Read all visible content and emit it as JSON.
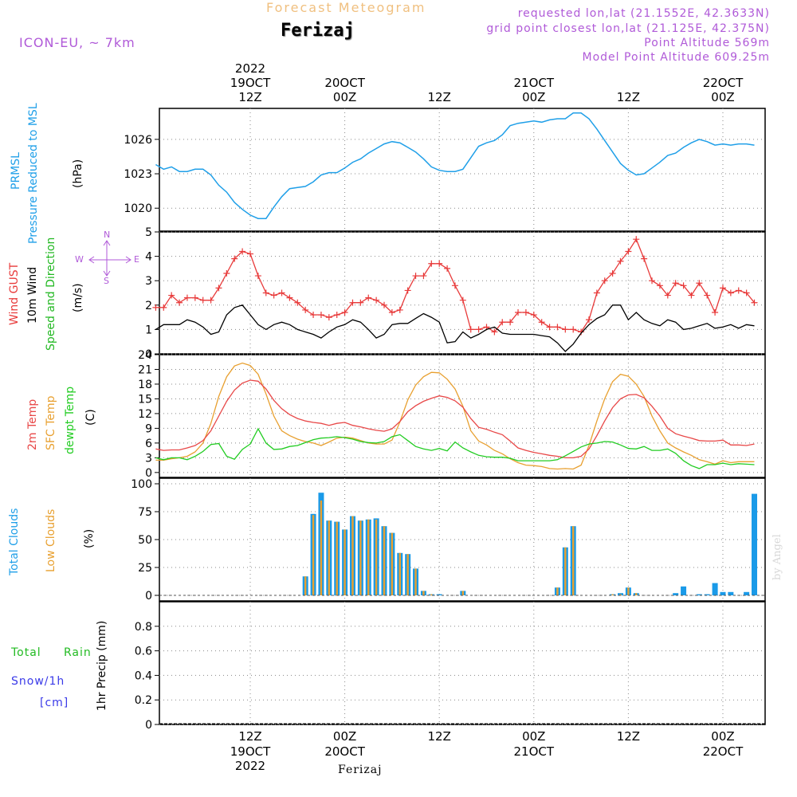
{
  "header": {
    "forecast_title": "Forecast Meteogram",
    "location": "Ferizaj",
    "model": "ICON-EU, ~ 7km",
    "requested": "requested lon,lat (21.1552E, 42.3633N)",
    "grid_point": "grid point closest lon,lat (21.125E, 42.375N)",
    "point_altitude": "Point Altitude 569m",
    "model_altitude": "Model Point Altitude 609.25m",
    "watermark": "by Angel",
    "footer_location": "Ferizaj"
  },
  "time_axis": {
    "top_labels": [
      {
        "l1": "2022",
        "l2": "19OCT",
        "l3": "12Z",
        "hour": 12
      },
      {
        "l1": "",
        "l2": "20OCT",
        "l3": "00Z",
        "hour": 24
      },
      {
        "l1": "",
        "l2": "",
        "l3": "12Z",
        "hour": 36
      },
      {
        "l1": "",
        "l2": "21OCT",
        "l3": "00Z",
        "hour": 48
      },
      {
        "l1": "",
        "l2": "",
        "l3": "12Z",
        "hour": 60
      },
      {
        "l1": "",
        "l2": "22OCT",
        "l3": "00Z",
        "hour": 72
      }
    ],
    "bottom_labels": [
      {
        "l1": "12Z",
        "l2": "19OCT",
        "l3": "2022",
        "hour": 12
      },
      {
        "l1": "00Z",
        "l2": "20OCT",
        "l3": "",
        "hour": 24
      },
      {
        "l1": "12Z",
        "l2": "",
        "l3": "",
        "hour": 36
      },
      {
        "l1": "00Z",
        "l2": "21OCT",
        "l3": "",
        "hour": 48
      },
      {
        "l1": "12Z",
        "l2": "",
        "l3": "",
        "hour": 60
      },
      {
        "l1": "00Z",
        "l2": "22OCT",
        "l3": "",
        "hour": 72
      }
    ]
  },
  "colors": {
    "pressure": "#1f9fe8",
    "gust": "#e83a3a",
    "wind": "#000000",
    "direction": "#22b822",
    "temp2m": "#e84848",
    "sfc": "#e8a030",
    "dewpt": "#22cc22",
    "total_clouds": "#1a9ae8",
    "low_clouds": "#e8a030",
    "rain": "#22bb22",
    "snow": "#3a3ae8",
    "header_purple": "#b05ad8",
    "header_orange": "#f0c080"
  },
  "labels": {
    "pressure_1": "PRMSL",
    "pressure_2": "Pressure Reduced to MSL",
    "pressure_unit": "(hPa)",
    "wind_gust": "Wind GUST",
    "wind_10m": "10m Wind",
    "wind_dir": "Speed and Direction",
    "wind_unit": "(m/s)",
    "compass_n": "N",
    "compass_s": "S",
    "compass_w": "W",
    "compass_e": "E",
    "temp_2m": "2m Temp",
    "temp_sfc": "SFC Temp",
    "temp_dew": "dewpt Temp",
    "temp_unit": "(C)",
    "clouds_total": "Total Clouds",
    "clouds_low": "Low Clouds",
    "clouds_unit": "(%)",
    "rain_total": "Total",
    "rain_rain": "Rain",
    "snow": "Snow/1h",
    "snow_unit": "[cm]",
    "precip": "1hr Precip (mm)"
  },
  "chart_data": [
    {
      "type": "line",
      "panel": "pressure",
      "ylabel": "Pressure Reduced to MSL (hPa)",
      "ylim": [
        1018,
        1028.7
      ],
      "yticks": [
        1020,
        1023,
        1026
      ],
      "x_hours": [
        0,
        1,
        2,
        3,
        4,
        5,
        6,
        7,
        8,
        9,
        10,
        11,
        12,
        13,
        14,
        15,
        16,
        17,
        18,
        19,
        20,
        21,
        22,
        23,
        24,
        25,
        26,
        27,
        28,
        29,
        30,
        31,
        32,
        33,
        34,
        35,
        36,
        37,
        38,
        39,
        40,
        41,
        42,
        43,
        44,
        45,
        46,
        47,
        48,
        49,
        50,
        51,
        52,
        53,
        54,
        55,
        56,
        57,
        58,
        59,
        60,
        61,
        62,
        63,
        64,
        65,
        66,
        67,
        68,
        69,
        70,
        71,
        72,
        73,
        74,
        75,
        76
      ],
      "series": [
        {
          "name": "PRMSL",
          "values": [
            1023.8,
            1023.4,
            1023.6,
            1023.2,
            1023.2,
            1023.4,
            1023.4,
            1022.9,
            1022,
            1021.4,
            1020.5,
            1019.9,
            1019.4,
            1019.1,
            1019.1,
            1020.1,
            1021,
            1021.7,
            1021.8,
            1021.9,
            1022.3,
            1022.9,
            1023.1,
            1023.1,
            1023.5,
            1024,
            1024.3,
            1024.8,
            1025.2,
            1025.6,
            1025.8,
            1025.7,
            1025.3,
            1024.9,
            1024.3,
            1023.6,
            1023.3,
            1023.2,
            1023.2,
            1023.4,
            1024.4,
            1025.4,
            1025.7,
            1025.9,
            1026.4,
            1027.2,
            1027.4,
            1027.5,
            1027.6,
            1027.5,
            1027.7,
            1027.8,
            1027.8,
            1028.3,
            1028.3,
            1027.8,
            1026.9,
            1025.9,
            1024.9,
            1023.9,
            1023.3,
            1022.9,
            1023,
            1023.5,
            1024,
            1024.6,
            1024.8,
            1025.3,
            1025.7,
            1026,
            1025.8,
            1025.5,
            1025.6,
            1025.5,
            1025.6,
            1025.6,
            1025.5
          ]
        }
      ]
    },
    {
      "type": "line",
      "panel": "wind",
      "ylabel": "(m/s)",
      "ylim": [
        0,
        5
      ],
      "yticks": [
        0,
        1,
        2,
        3,
        4,
        5
      ],
      "x_hours": [
        0,
        1,
        2,
        3,
        4,
        5,
        6,
        7,
        8,
        9,
        10,
        11,
        12,
        13,
        14,
        15,
        16,
        17,
        18,
        19,
        20,
        21,
        22,
        23,
        24,
        25,
        26,
        27,
        28,
        29,
        30,
        31,
        32,
        33,
        34,
        35,
        36,
        37,
        38,
        39,
        40,
        41,
        42,
        43,
        44,
        45,
        46,
        47,
        48,
        49,
        50,
        51,
        52,
        53,
        54,
        55,
        56,
        57,
        58,
        59,
        60,
        61,
        62,
        63,
        64,
        65,
        66,
        67,
        68,
        69,
        70,
        71,
        72,
        73,
        74,
        75,
        76
      ],
      "series": [
        {
          "name": "Wind GUST",
          "values": [
            1.9,
            1.9,
            2.4,
            2.1,
            2.3,
            2.3,
            2.2,
            2.2,
            2.7,
            3.3,
            3.9,
            4.2,
            4.1,
            3.2,
            2.5,
            2.4,
            2.5,
            2.3,
            2.1,
            1.8,
            1.6,
            1.6,
            1.5,
            1.6,
            1.7,
            2.1,
            2.1,
            2.3,
            2.2,
            2.0,
            1.7,
            1.8,
            2.6,
            3.2,
            3.2,
            3.7,
            3.7,
            3.5,
            2.8,
            2.2,
            1.0,
            1.0,
            1.1,
            0.9,
            1.3,
            1.3,
            1.7,
            1.7,
            1.6,
            1.3,
            1.1,
            1.1,
            1.0,
            1.0,
            0.9,
            1.4,
            2.5,
            3.0,
            3.3,
            3.8,
            4.2,
            4.7,
            3.9,
            3.0,
            2.8,
            2.4,
            2.9,
            2.8,
            2.4,
            2.9,
            2.4,
            1.7,
            2.7,
            2.5,
            2.6,
            2.5,
            2.1
          ]
        },
        {
          "name": "10m Wind",
          "values": [
            1.0,
            1.2,
            1.2,
            1.2,
            1.4,
            1.3,
            1.1,
            0.8,
            0.9,
            1.6,
            1.9,
            2.0,
            1.6,
            1.2,
            1.0,
            1.2,
            1.3,
            1.2,
            1.0,
            0.9,
            0.8,
            0.65,
            0.9,
            1.1,
            1.2,
            1.4,
            1.3,
            1.0,
            0.65,
            0.8,
            1.2,
            1.25,
            1.25,
            1.45,
            1.65,
            1.5,
            1.3,
            0.45,
            0.5,
            0.9,
            0.65,
            0.8,
            1.0,
            1.1,
            0.85,
            0.8,
            0.8,
            0.8,
            0.8,
            0.75,
            0.7,
            0.45,
            0.1,
            0.4,
            0.85,
            1.2,
            1.45,
            1.6,
            2.0,
            2.0,
            1.4,
            1.7,
            1.4,
            1.25,
            1.15,
            1.4,
            1.3,
            1.0,
            1.05,
            1.15,
            1.25,
            1.05,
            1.1,
            1.2,
            1.05,
            1.2,
            1.15
          ]
        }
      ]
    },
    {
      "type": "line",
      "panel": "temperature",
      "ylabel": "(C)",
      "ylim": [
        -1,
        24
      ],
      "yticks": [
        0,
        3,
        6,
        9,
        12,
        15,
        18,
        21,
        24
      ],
      "x_hours": [
        0,
        1,
        2,
        3,
        4,
        5,
        6,
        7,
        8,
        9,
        10,
        11,
        12,
        13,
        14,
        15,
        16,
        17,
        18,
        19,
        20,
        21,
        22,
        23,
        24,
        25,
        26,
        27,
        28,
        29,
        30,
        31,
        32,
        33,
        34,
        35,
        36,
        37,
        38,
        39,
        40,
        41,
        42,
        43,
        44,
        45,
        46,
        47,
        48,
        49,
        50,
        51,
        52,
        53,
        54,
        55,
        56,
        57,
        58,
        59,
        60,
        61,
        62,
        63,
        64,
        65,
        66,
        67,
        68,
        69,
        70,
        71,
        72,
        73,
        74,
        75,
        76
      ],
      "series": [
        {
          "name": "2m Temp",
          "values": [
            4.8,
            4.5,
            4.6,
            4.6,
            5.0,
            5.5,
            6.5,
            8.5,
            11.5,
            14.5,
            16.8,
            18.2,
            18.8,
            18.6,
            17.0,
            14.7,
            13.0,
            11.8,
            11.0,
            10.5,
            10.2,
            10.0,
            9.6,
            10.0,
            10.2,
            9.6,
            9.3,
            8.9,
            8.6,
            8.4,
            8.9,
            10.4,
            12.4,
            13.6,
            14.5,
            15.1,
            15.6,
            15.3,
            14.6,
            13.3,
            11.0,
            9.2,
            8.8,
            8.2,
            7.7,
            6.4,
            5.0,
            4.5,
            4.1,
            3.8,
            3.5,
            3.3,
            3.0,
            3.0,
            3.3,
            4.8,
            7.5,
            10.5,
            13.2,
            15.0,
            15.8,
            15.9,
            15.2,
            13.5,
            11.5,
            9.0,
            7.9,
            7.4,
            7.0,
            6.5,
            6.4,
            6.4,
            6.6,
            5.6,
            5.6,
            5.5,
            5.8
          ]
        },
        {
          "name": "SFC Temp",
          "values": [
            2.5,
            2.5,
            2.8,
            3.0,
            3.3,
            4.2,
            6.0,
            10.0,
            15.5,
            19.5,
            21.7,
            22.3,
            21.8,
            20.0,
            16.0,
            11.5,
            8.5,
            7.5,
            6.8,
            6.3,
            6.0,
            5.5,
            6.2,
            7.0,
            7.2,
            7.0,
            6.5,
            6.0,
            5.8,
            5.8,
            6.6,
            10.3,
            14.8,
            17.8,
            19.5,
            20.4,
            20.3,
            19.0,
            17.0,
            13.5,
            8.5,
            6.4,
            5.6,
            4.5,
            3.8,
            2.8,
            2.0,
            1.5,
            1.4,
            1.2,
            0.8,
            0.7,
            0.8,
            0.7,
            1.5,
            5.5,
            10.5,
            15.0,
            18.5,
            20.0,
            19.6,
            18.0,
            15.5,
            11.5,
            8.5,
            6.0,
            5.0,
            4.2,
            3.5,
            2.6,
            2.2,
            1.7,
            2.4,
            2.0,
            2.2,
            2.2,
            2.2
          ]
        },
        {
          "name": "dewpt Temp",
          "values": [
            3.0,
            2.6,
            3.0,
            3.0,
            2.6,
            3.3,
            4.3,
            5.7,
            5.9,
            3.3,
            2.7,
            4.7,
            5.8,
            8.9,
            6.0,
            4.7,
            4.8,
            5.3,
            5.5,
            6.1,
            6.7,
            7.0,
            7.1,
            7.3,
            7.1,
            6.8,
            6.3,
            6.1,
            6.0,
            6.3,
            7.3,
            7.7,
            6.5,
            5.3,
            4.8,
            4.5,
            4.9,
            4.4,
            6.2,
            5.0,
            4.2,
            3.5,
            3.2,
            3.1,
            3.1,
            2.9,
            2.4,
            2.4,
            2.4,
            2.4,
            2.4,
            2.6,
            3.4,
            4.3,
            5.2,
            5.8,
            6.0,
            6.3,
            6.2,
            5.6,
            4.9,
            4.8,
            5.3,
            4.5,
            4.5,
            4.8,
            3.9,
            2.4,
            1.4,
            0.8,
            1.6,
            1.6,
            1.9,
            1.6,
            1.8,
            1.7,
            1.6
          ]
        }
      ]
    },
    {
      "type": "bar",
      "panel": "clouds",
      "ylabel": "(%)",
      "ylim": [
        -5,
        105
      ],
      "yticks": [
        0,
        25,
        50,
        75,
        100
      ],
      "x_hours": [
        0,
        1,
        2,
        3,
        4,
        5,
        6,
        7,
        8,
        9,
        10,
        11,
        12,
        13,
        14,
        15,
        16,
        17,
        18,
        19,
        20,
        21,
        22,
        23,
        24,
        25,
        26,
        27,
        28,
        29,
        30,
        31,
        32,
        33,
        34,
        35,
        36,
        37,
        38,
        39,
        40,
        41,
        42,
        43,
        44,
        45,
        46,
        47,
        48,
        49,
        50,
        51,
        52,
        53,
        54,
        55,
        56,
        57,
        58,
        59,
        60,
        61,
        62,
        63,
        64,
        65,
        66,
        67,
        68,
        69,
        70,
        71,
        72,
        73,
        74,
        75,
        76
      ],
      "series": [
        {
          "name": "Total Clouds",
          "values": [
            0,
            0,
            0,
            0,
            0,
            0,
            0,
            0,
            0,
            0,
            0,
            0,
            0,
            0,
            0,
            0,
            0,
            0,
            0,
            17,
            73,
            92,
            67,
            66,
            59,
            71,
            67,
            68,
            69,
            62,
            56,
            38,
            37,
            24,
            4,
            1,
            1,
            0,
            0,
            4,
            0,
            0,
            0,
            0,
            0,
            0,
            0,
            0,
            0,
            0,
            0,
            7,
            43,
            62,
            0,
            0,
            0,
            0,
            1,
            2,
            7,
            2,
            0,
            0,
            0,
            0,
            2,
            8,
            0,
            1,
            1,
            11,
            3,
            3,
            0,
            3,
            91
          ]
        },
        {
          "name": "Low Clouds",
          "values": [
            0,
            0,
            0,
            0,
            0,
            0,
            0,
            0,
            0,
            0,
            0,
            0,
            0,
            0,
            0,
            0,
            0,
            0,
            0,
            17,
            72,
            85,
            67,
            66,
            59,
            71,
            67,
            68,
            68,
            62,
            56,
            38,
            37,
            24,
            4,
            1,
            0,
            0,
            0,
            4,
            0,
            0,
            0,
            0,
            0,
            0,
            0,
            0,
            0,
            0,
            0,
            7,
            43,
            62,
            0,
            0,
            0,
            0,
            1,
            1,
            7,
            2,
            0,
            0,
            0,
            0,
            0,
            0,
            0,
            0,
            0,
            0,
            0,
            0,
            0,
            0,
            0
          ]
        }
      ]
    },
    {
      "type": "bar",
      "panel": "precip",
      "ylabel": "1hr Precip (mm)",
      "ylim": [
        0,
        1.0
      ],
      "yticks": [
        0,
        0.2,
        0.4,
        0.6,
        0.8
      ],
      "series": [
        {
          "name": "Total Rain",
          "values": []
        },
        {
          "name": "Snow/1h",
          "values": []
        }
      ]
    }
  ]
}
